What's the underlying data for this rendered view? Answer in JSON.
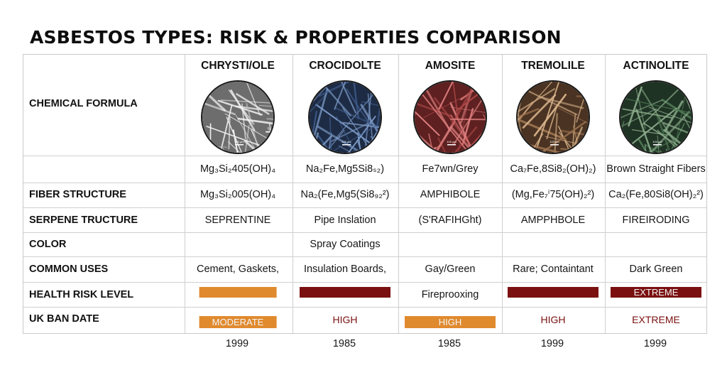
{
  "title": "ASBESTOS TYPES: RISK & PROPERTIES COMPARISON",
  "row_labels": {
    "chemical_formula": "CHEMICAL FORMULA",
    "fiber_structure": "FIBER STRUCTURE",
    "serpene_structure": "SERPENE TRUCTURE",
    "color": "COLOR",
    "common_uses": "COMMON USES",
    "health_risk": "HEALTH RISK LEVEL",
    "ban_date": "UK BAN DATE"
  },
  "columns": [
    {
      "name": "CHRYSTI/OLE",
      "image_icon": "white-fiber-micrograph",
      "scale_text": "100 µm",
      "colors": {
        "bg": "#6d6d6d",
        "fiber": "#f2f2f2",
        "fiber2": "#bdbdbd"
      },
      "row1": "Mg₃Si₂405(OH)₄",
      "row2": "Mg₃Si₂005(OH)₄",
      "row3": "SEPRENTINE",
      "row4": "",
      "row5": "Cement, Gaskets,",
      "bar1": {
        "level": 0.85,
        "color": "#e08a2e",
        "label": ""
      },
      "bar2": {
        "level": 0.85,
        "color": "#e08a2e",
        "label": "MODERATE"
      },
      "text2": "",
      "year": "1999"
    },
    {
      "name": "CROCIDOLTE",
      "image_icon": "blue-fiber-micrograph",
      "scale_text": "100 µm",
      "colors": {
        "bg": "#1d2b44",
        "fiber": "#7d9bc8",
        "fiber2": "#3f5b8a"
      },
      "row1": "Na₂Fe,Mg5Si8ₛ₂)",
      "row2": "Na₂(Fe,Mg5(Si8₉₂²)",
      "row3": "Pipe Inslation",
      "row4": "Spray Coatings",
      "row5": "Insulation Boards,",
      "bar1": {
        "level": 1.0,
        "color": "#7a1010",
        "label": ""
      },
      "bar2": null,
      "text2": "HIGH",
      "text2_color": "#7a1010",
      "year": "1985"
    },
    {
      "name": "AMOSITE",
      "image_icon": "red-fiber-micrograph",
      "scale_text": "100 µm",
      "colors": {
        "bg": "#5e2020",
        "fiber": "#e08080",
        "fiber2": "#b04848"
      },
      "row1": "Fe7wn/Grey",
      "row2": "AMPHIBOLE",
      "row3": "(S'RAFIHGht)",
      "row4": "",
      "row5": "Gay/Green",
      "bar1": null,
      "text1": "Fireprooxing",
      "bar2": {
        "level": 1.0,
        "color": "#e08a2e",
        "label": "HIGH"
      },
      "text2": "",
      "year": "1985"
    },
    {
      "name": "TREMOLILE",
      "image_icon": "tan-fiber-micrograph",
      "scale_text": "100 µm",
      "colors": {
        "bg": "#4a3322",
        "fiber": "#d9b48c",
        "fiber2": "#9c7350"
      },
      "row1": "Ca₇Fe,8Si8₂(OH)₂)",
      "row2": "(Mg,Fe₇ⁱ75(OH)₂²)",
      "row3": "AMPPHBOLE",
      "row4": "",
      "row5": "Rare; Containtant",
      "bar1": {
        "level": 1.0,
        "color": "#7a1010",
        "label": ""
      },
      "bar2": null,
      "text2": "HIGH",
      "text2_color": "#7a1010",
      "year": "1999"
    },
    {
      "name": "ACTINOLITE",
      "image_icon": "green-fiber-micrograph",
      "scale_text": "100 µm",
      "colors": {
        "bg": "#1f3324",
        "fiber": "#8fb08f",
        "fiber2": "#4f7a55"
      },
      "row1": "Brown Straight Fibers",
      "row2": "Ca₂(Fe,80Si8(OH)₂²)",
      "row3": "FIREIRODING",
      "row4": "",
      "row5": "Dark Green",
      "bar1": {
        "level": 1.0,
        "color": "#7a1010",
        "label": "EXTREME"
      },
      "bar2": null,
      "text2": "EXTREME",
      "text2_color": "#7a1010",
      "year": "1999"
    }
  ]
}
